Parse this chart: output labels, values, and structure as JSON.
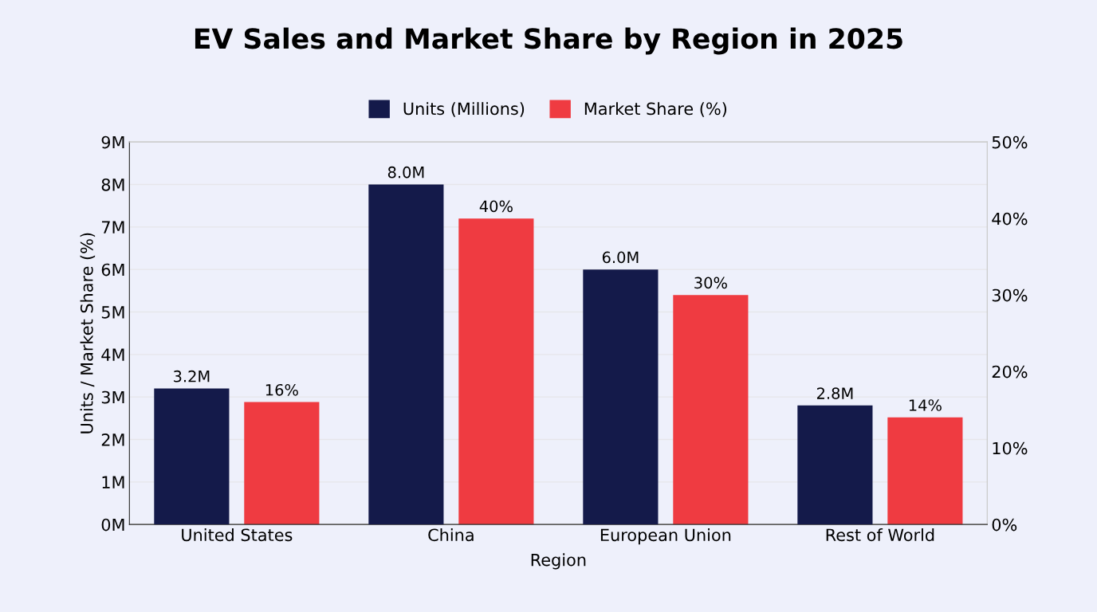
{
  "chart_data": {
    "type": "bar",
    "title": "EV Sales and Market Share by Region in 2025",
    "xlabel": "Region",
    "ylabel": "Units / Market Share (%)",
    "categories": [
      "United States",
      "China",
      "European Union",
      "Rest of World"
    ],
    "series": [
      {
        "name": "Units (Millions)",
        "color": "#141a4a",
        "values": [
          3.2,
          8.0,
          6.0,
          2.8
        ],
        "value_labels": [
          "3.2M",
          "8.0M",
          "6.0M",
          "2.8M"
        ]
      },
      {
        "name": "Market Share (%)",
        "color": "#ef3b41",
        "values": [
          16,
          40,
          30,
          14
        ],
        "value_labels": [
          "16%",
          "40%",
          "30%",
          "14%"
        ],
        "axis": "y2"
      }
    ],
    "ylim": [
      0,
      9
    ],
    "yticks": [
      {
        "value": 0,
        "label": "0M"
      },
      {
        "value": 1,
        "label": "1M"
      },
      {
        "value": 2,
        "label": "2M"
      },
      {
        "value": 3,
        "label": "3M"
      },
      {
        "value": 4,
        "label": "4M"
      },
      {
        "value": 5,
        "label": "5M"
      },
      {
        "value": 6,
        "label": "6M"
      },
      {
        "value": 7,
        "label": "7M"
      },
      {
        "value": 8,
        "label": "8M"
      },
      {
        "value": 9,
        "label": "9M"
      }
    ],
    "y2lim": [
      0,
      50
    ],
    "y2ticks": [
      {
        "value": 0,
        "label": "0%"
      },
      {
        "value": 10,
        "label": "10%"
      },
      {
        "value": 20,
        "label": "20%"
      },
      {
        "value": 30,
        "label": "30%"
      },
      {
        "value": 40,
        "label": "40%"
      },
      {
        "value": 50,
        "label": "50%"
      }
    ],
    "grid": "y",
    "legend": "top"
  }
}
